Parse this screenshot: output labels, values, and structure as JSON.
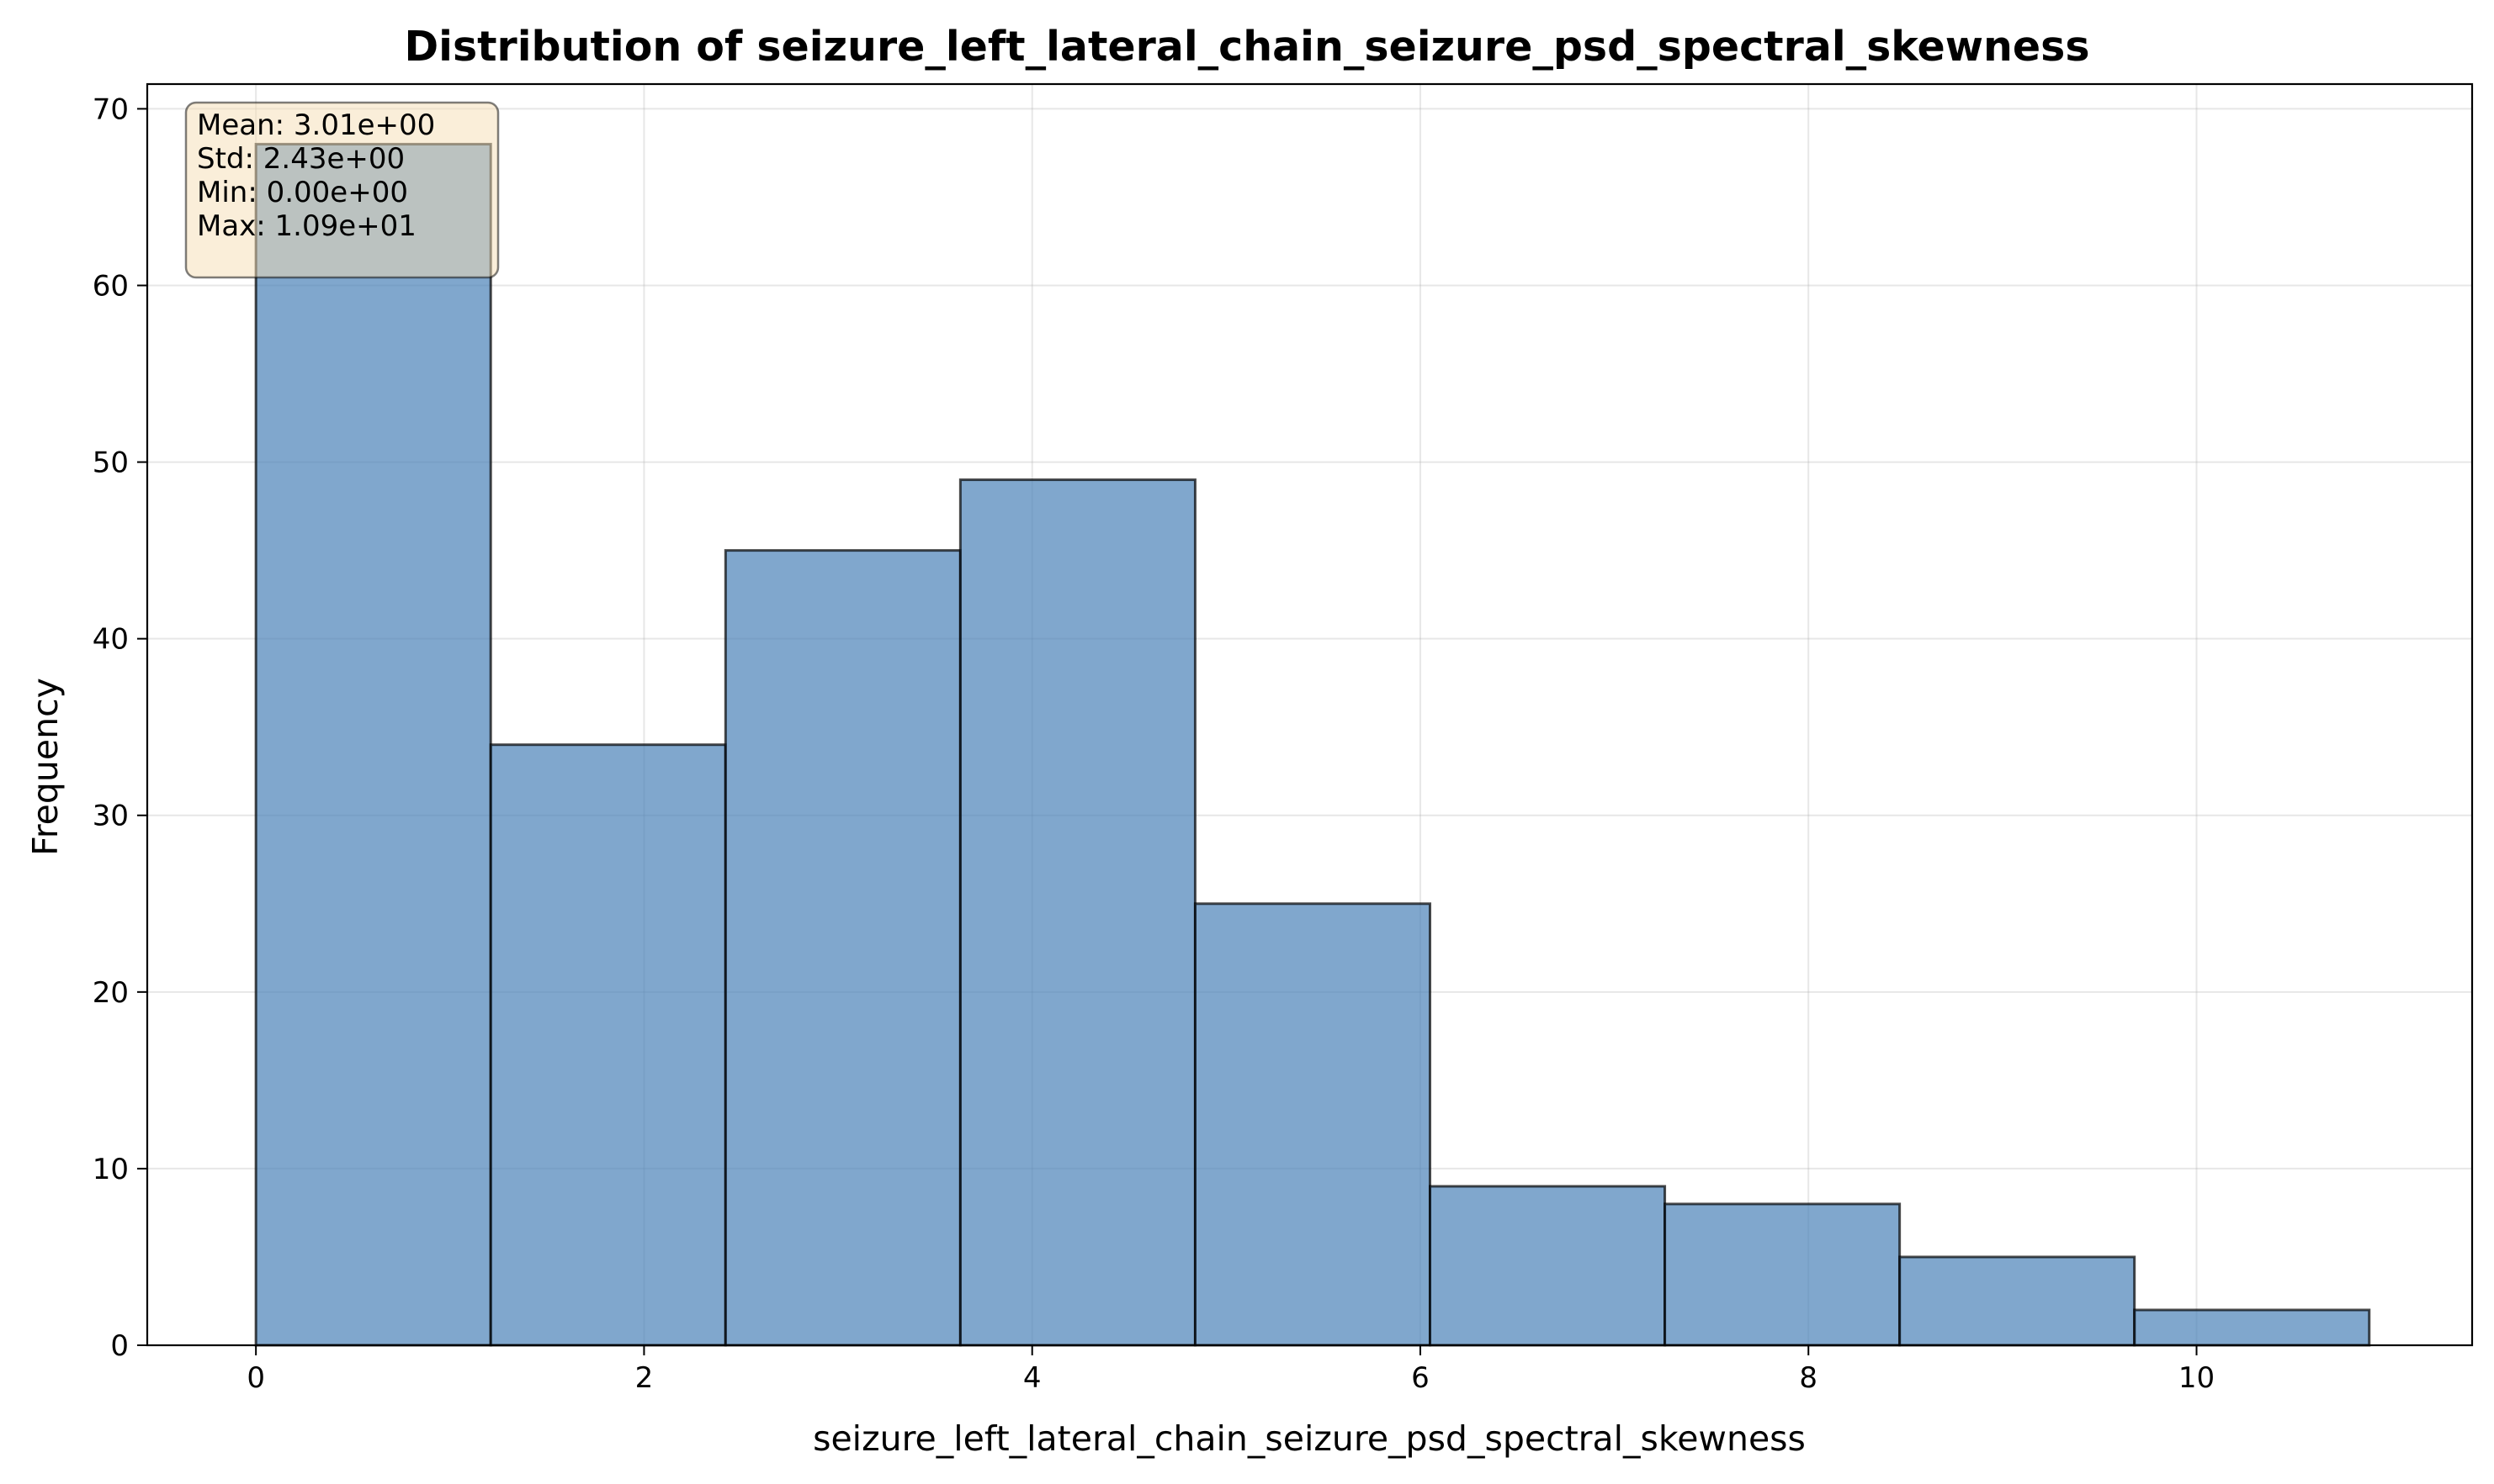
{
  "chart_data": {
    "type": "bar",
    "title": "Distribution of seizure_left_lateral_chain_seizure_psd_spectral_skewness",
    "xlabel": "seizure_left_lateral_chain_seizure_psd_spectral_skewness",
    "ylabel": "Frequency",
    "bins": [
      {
        "x0": 0.0,
        "x1": 1.21,
        "count": 68
      },
      {
        "x0": 1.21,
        "x1": 2.42,
        "count": 34
      },
      {
        "x0": 2.42,
        "x1": 3.63,
        "count": 45
      },
      {
        "x0": 3.63,
        "x1": 4.84,
        "count": 49
      },
      {
        "x0": 4.84,
        "x1": 6.05,
        "count": 25
      },
      {
        "x0": 6.05,
        "x1": 7.26,
        "count": 9
      },
      {
        "x0": 7.26,
        "x1": 8.47,
        "count": 8
      },
      {
        "x0": 8.47,
        "x1": 9.68,
        "count": 5
      },
      {
        "x0": 9.68,
        "x1": 10.89,
        "count": 2
      }
    ],
    "xlim": [
      -0.56,
      11.42
    ],
    "ylim": [
      0,
      71.4
    ],
    "xticks": [
      0,
      2,
      4,
      6,
      8,
      10
    ],
    "yticks": [
      0,
      10,
      20,
      30,
      40,
      50,
      60,
      70
    ],
    "grid": true,
    "bar_color": "#4a82b8",
    "edge_color": "#000000",
    "stats": {
      "mean": "Mean: 3.01e+00",
      "std": "Std: 2.43e+00",
      "min": "Min: 0.00e+00",
      "max": "Max: 1.09e+01"
    }
  }
}
